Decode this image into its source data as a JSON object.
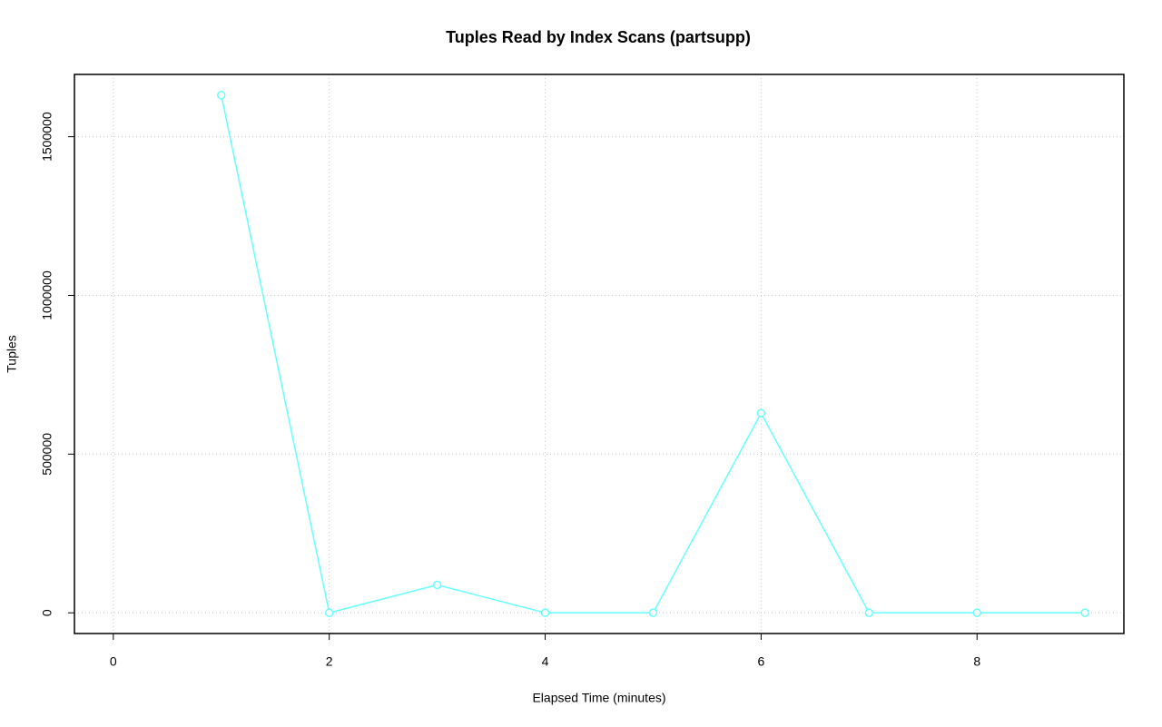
{
  "chart_data": {
    "type": "line",
    "title": "Tuples Read by Index Scans (partsupp)",
    "x_label": "Elapsed Time (minutes)",
    "y_label": "Tuples",
    "x": [
      1,
      2,
      3,
      4,
      5,
      6,
      7,
      8,
      9
    ],
    "series": [
      {
        "color": "#66ffff",
        "values": [
          1631000,
          0,
          88000,
          0,
          0,
          629000,
          0,
          0,
          0
        ]
      }
    ],
    "xlim": [
      -0.36,
      9.36
    ],
    "xticks": [
      0,
      2,
      4,
      6,
      8
    ],
    "ylim": [
      -65240,
      1696240
    ],
    "yticks": [
      0,
      500000,
      1000000,
      1500000
    ],
    "grid": true
  }
}
